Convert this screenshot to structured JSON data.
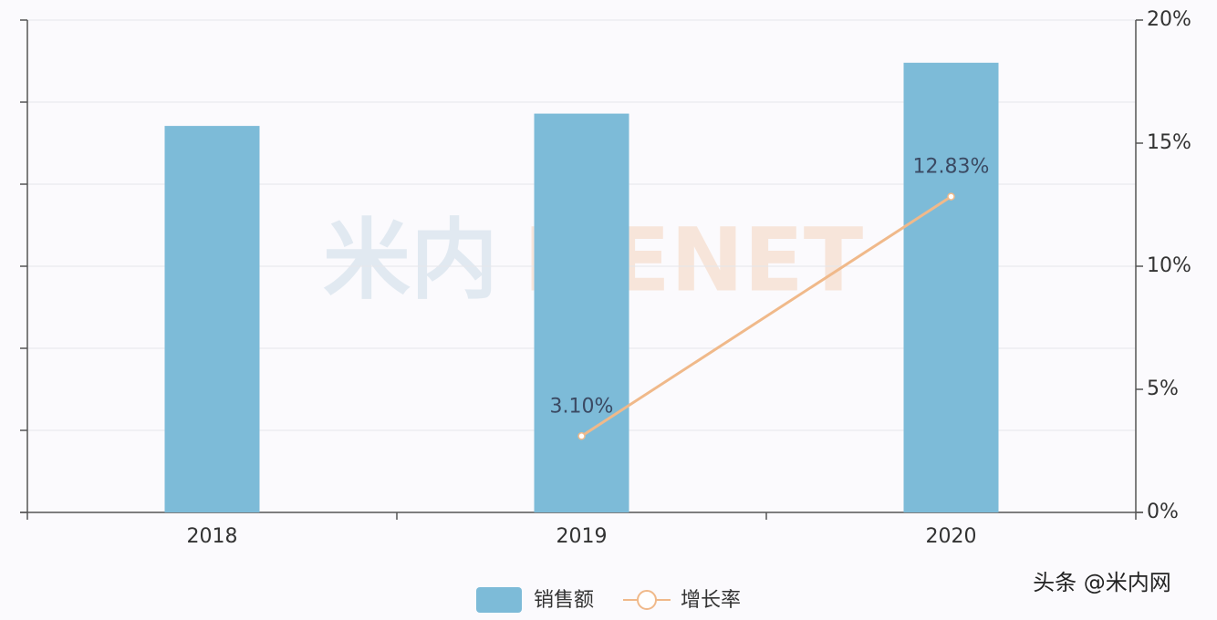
{
  "chart_data": {
    "type": "bar",
    "categories": [
      "2018",
      "2019",
      "2020"
    ],
    "series": [
      {
        "name": "销售额",
        "type": "bar",
        "color": "#7dbbd8",
        "values": [
          4.71,
          4.86,
          5.48
        ]
      },
      {
        "name": "增长率",
        "type": "line",
        "axis": "y2",
        "color": "#f0b98a",
        "values": [
          null,
          3.1,
          12.83
        ],
        "value_labels": [
          null,
          "3.10%",
          "12.83%"
        ]
      }
    ],
    "ylim": [
      0,
      6
    ],
    "yticks": [
      0,
      1,
      2,
      3,
      4,
      5,
      6
    ],
    "y2lim": [
      0,
      20
    ],
    "y2ticks": [
      {
        "value": 0,
        "label": "0%"
      },
      {
        "value": 5,
        "label": "5%"
      },
      {
        "value": 10,
        "label": "10%"
      },
      {
        "value": 15,
        "label": "15%"
      },
      {
        "value": 20,
        "label": "20%"
      }
    ],
    "grid": true,
    "legend": "bottom",
    "watermark": [
      "米内",
      "MENET"
    ],
    "footer": "头条 @米内网"
  }
}
